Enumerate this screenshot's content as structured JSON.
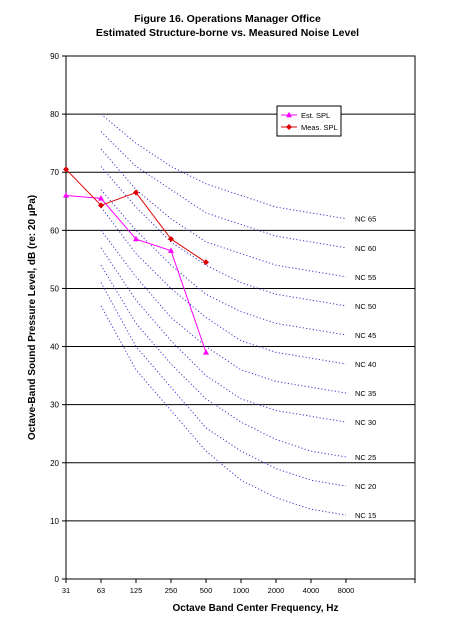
{
  "chart_data": {
    "type": "line",
    "title": "Figure 16. Operations Manager Office",
    "subtitle": "Estimated Structure-borne vs. Measured Noise Level",
    "xlabel": "Octave Band Center Frequency, Hz",
    "ylabel": "Octave-Band Sound Pressure Level, dB (re: 20 µPa)",
    "categories": [
      "31",
      "63",
      "125",
      "250",
      "500",
      "1000",
      "2000",
      "4000",
      "8000"
    ],
    "ylim": [
      0,
      90
    ],
    "yticks": [
      0,
      10,
      20,
      30,
      40,
      50,
      60,
      70,
      80,
      90
    ],
    "grid": true,
    "legend_position": "top-right",
    "series": [
      {
        "name": "Est. SPL",
        "color": "#ff00ff",
        "marker": "triangle",
        "values": [
          66,
          65.5,
          58.5,
          56.5,
          39,
          null,
          null,
          null,
          null
        ]
      },
      {
        "name": "Meas. SPL",
        "color": "#dd0000",
        "marker": "diamond",
        "values": [
          70.5,
          64.3,
          66.5,
          58.5,
          54.5,
          null,
          null,
          null,
          null
        ]
      }
    ],
    "nc_curves": {
      "color": "#3b3bcc",
      "curves": [
        {
          "name": "NC 15",
          "values": [
            null,
            47,
            36,
            29,
            22,
            17,
            14,
            12,
            11
          ]
        },
        {
          "name": "NC 20",
          "values": [
            null,
            51,
            40,
            33,
            26,
            22,
            19,
            17,
            16
          ]
        },
        {
          "name": "NC 25",
          "values": [
            null,
            54,
            44,
            37,
            31,
            27,
            24,
            22,
            21
          ]
        },
        {
          "name": "NC 30",
          "values": [
            null,
            57,
            48,
            41,
            35,
            31,
            29,
            28,
            27
          ]
        },
        {
          "name": "NC 35",
          "values": [
            null,
            60,
            52,
            45,
            40,
            36,
            34,
            33,
            32
          ]
        },
        {
          "name": "NC 40",
          "values": [
            null,
            64,
            56,
            50,
            45,
            41,
            39,
            38,
            37
          ]
        },
        {
          "name": "NC 45",
          "values": [
            null,
            67,
            60,
            54,
            49,
            46,
            44,
            43,
            42
          ]
        },
        {
          "name": "NC 50",
          "values": [
            null,
            71,
            64,
            58,
            54,
            51,
            49,
            48,
            47
          ]
        },
        {
          "name": "NC 55",
          "values": [
            null,
            74,
            67,
            62,
            58,
            56,
            54,
            53,
            52
          ]
        },
        {
          "name": "NC 60",
          "values": [
            null,
            77,
            71,
            67,
            63,
            61,
            59,
            58,
            57
          ]
        },
        {
          "name": "NC 65",
          "values": [
            null,
            80,
            75,
            71,
            68,
            66,
            64,
            63,
            62
          ]
        }
      ]
    }
  }
}
